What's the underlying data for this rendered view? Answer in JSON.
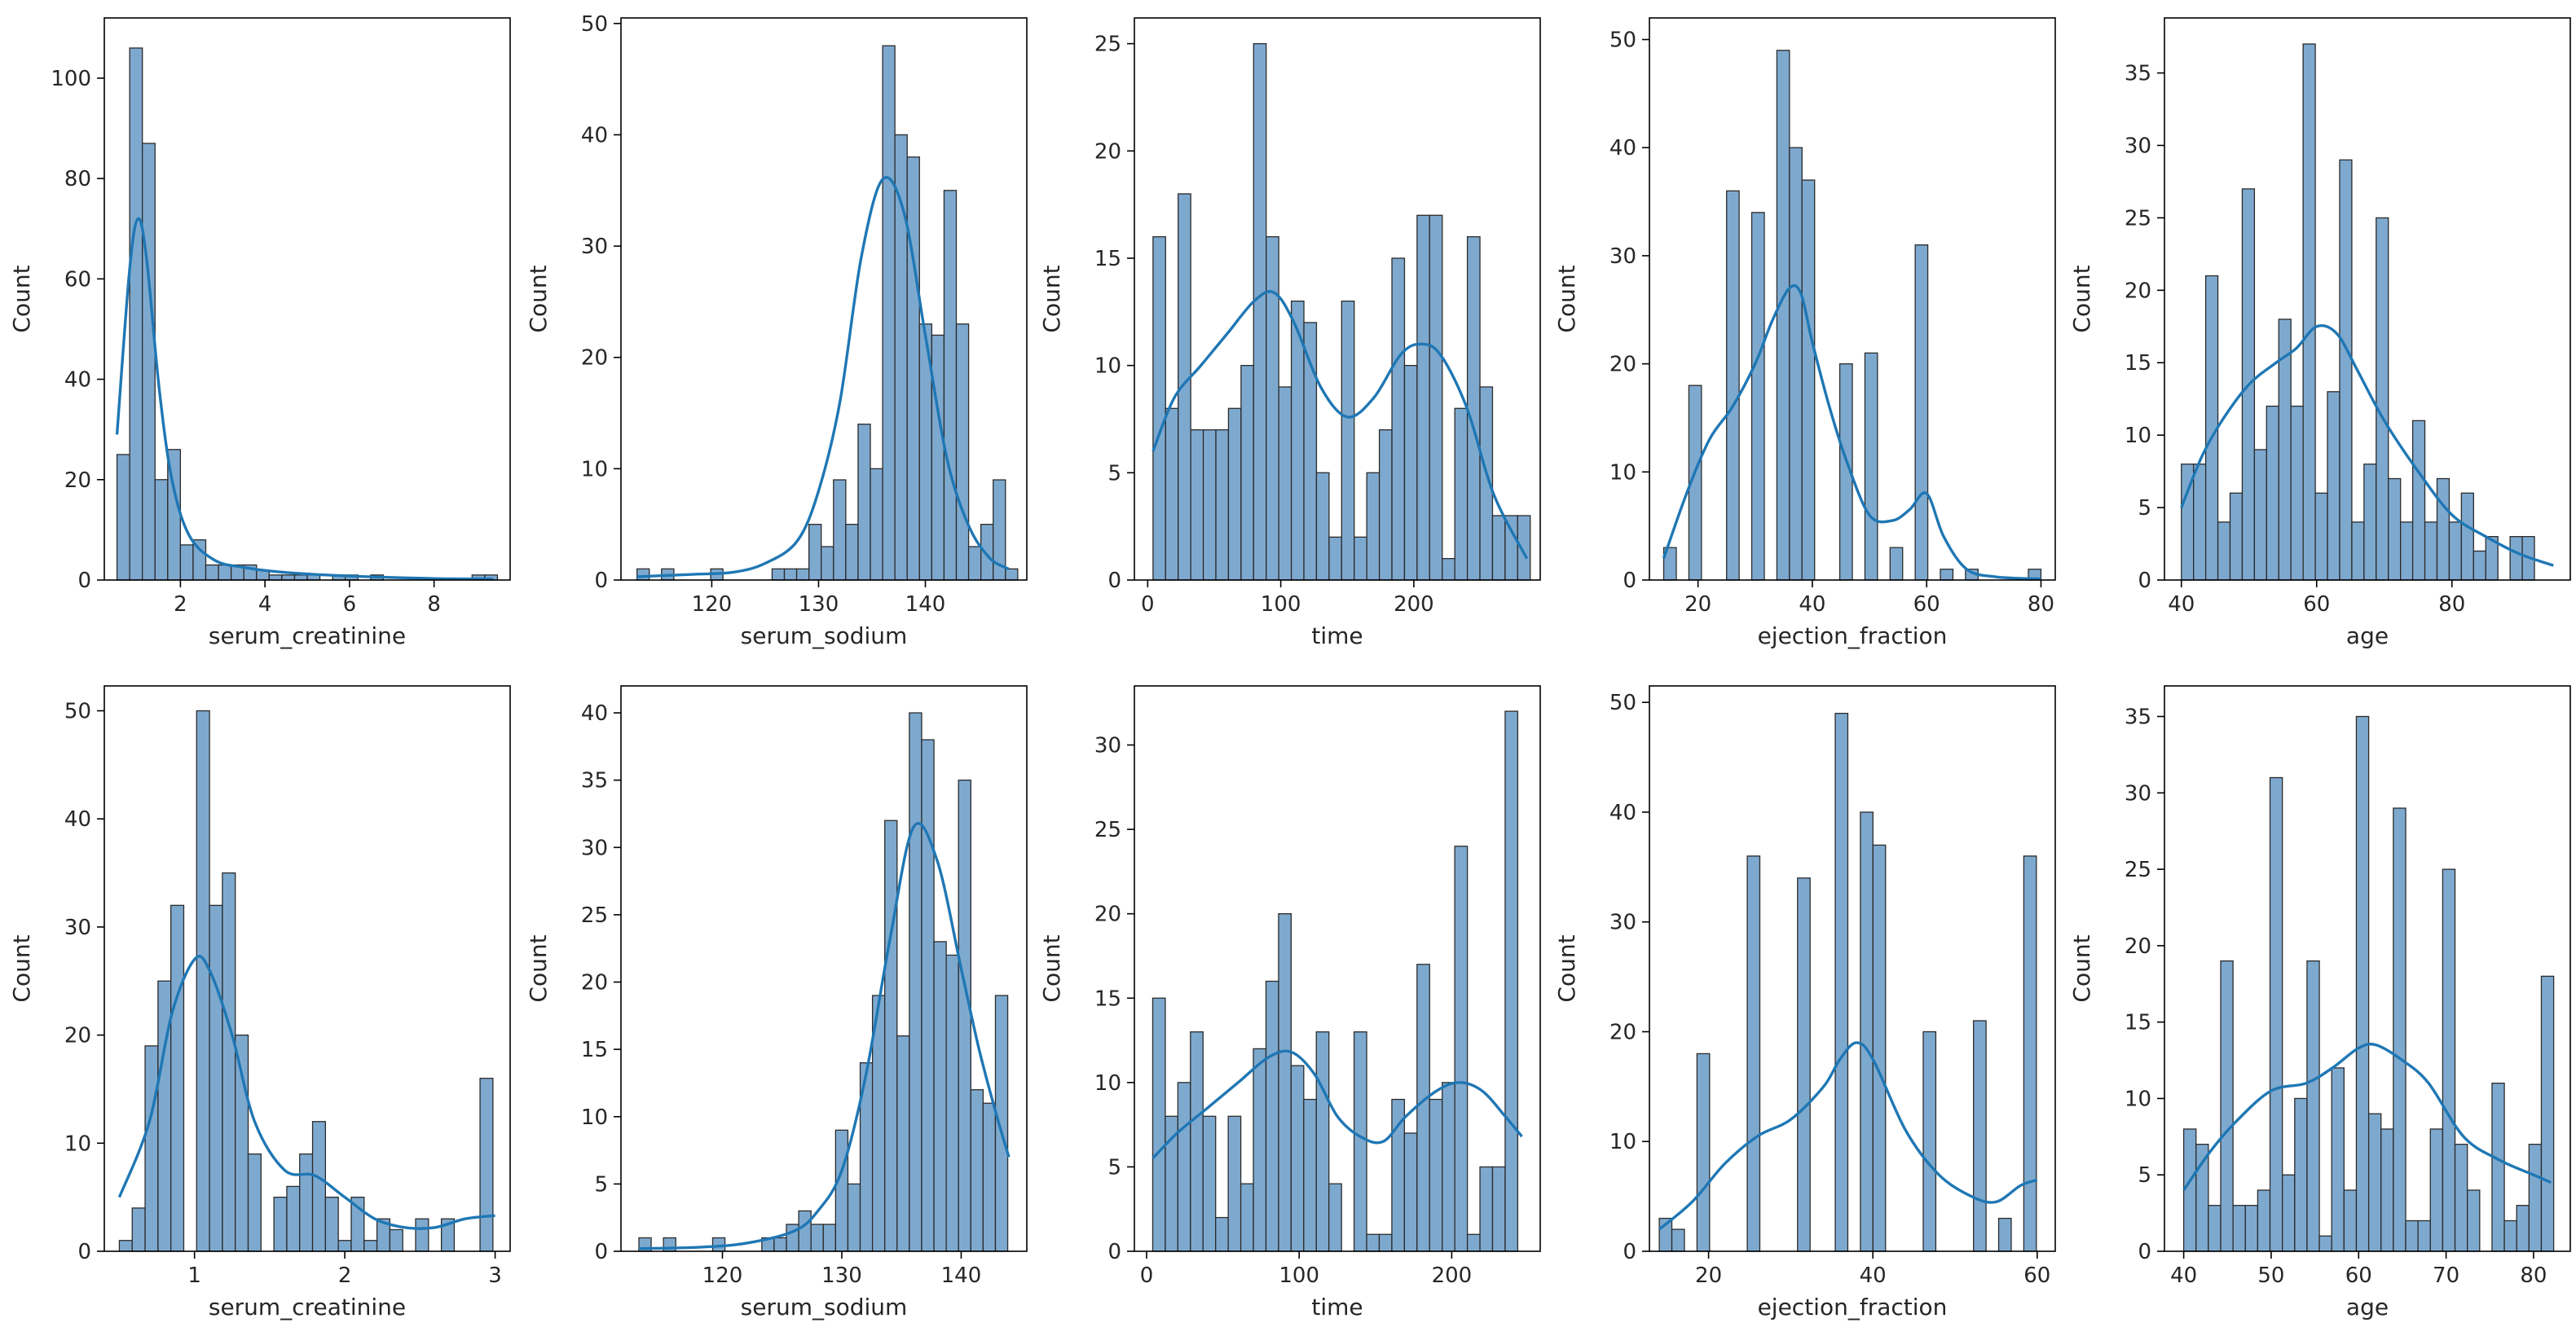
{
  "colors": {
    "bar_fill": "#7ea9cf",
    "bar_stroke": "#2b2b2b",
    "kde_line": "#1f77b4",
    "axes": "#000000",
    "text": "#262626"
  },
  "chart_data": [
    {
      "type": "bar",
      "subtype": "histogram+kde",
      "title": "",
      "xlabel": "serum_creatinine",
      "ylabel": "Count",
      "xlim": [
        0.2,
        9.8
      ],
      "ylim": [
        0,
        112
      ],
      "xticks": [
        2,
        4,
        6,
        8
      ],
      "yticks": [
        0,
        20,
        40,
        60,
        80,
        100
      ],
      "bin_start": 0.5,
      "bin_width": 0.3,
      "values": [
        25,
        106,
        87,
        20,
        26,
        7,
        8,
        3,
        3,
        3,
        3,
        2,
        1,
        1,
        1,
        1,
        0,
        1,
        1,
        0,
        1,
        0,
        0,
        0,
        0,
        0,
        0,
        0,
        1,
        1
      ],
      "kde": {
        "x": [
          0.5,
          0.8,
          1.0,
          1.2,
          1.5,
          1.8,
          2.2,
          2.8,
          3.5,
          4.5,
          6.0,
          8.0,
          9.4
        ],
        "y": [
          29,
          62,
          72,
          64,
          38,
          20,
          9,
          4,
          2.5,
          1.5,
          0.8,
          0.3,
          0.2
        ]
      }
    },
    {
      "type": "bar",
      "subtype": "histogram+kde",
      "title": "",
      "xlabel": "serum_sodium",
      "ylabel": "Count",
      "xlim": [
        111.5,
        149.5
      ],
      "ylim": [
        0,
        50.5
      ],
      "xticks": [
        120,
        130,
        140
      ],
      "yticks": [
        0,
        10,
        20,
        30,
        40,
        50
      ],
      "bin_start": 113,
      "bin_width": 1.15,
      "values": [
        1,
        0,
        1,
        0,
        0,
        0,
        1,
        0,
        0,
        0,
        0,
        1,
        1,
        1,
        5,
        3,
        9,
        5,
        14,
        10,
        48,
        40,
        38,
        23,
        22,
        35,
        23,
        3,
        5,
        9,
        1
      ],
      "kde": {
        "x": [
          113,
          118,
          122,
          125,
          128,
          130,
          132,
          134,
          136,
          138,
          140,
          142,
          144,
          146,
          147.8
        ],
        "y": [
          0.3,
          0.5,
          0.7,
          1.5,
          3.5,
          8,
          16,
          29,
          36,
          33,
          22,
          11,
          5,
          2,
          1
        ]
      }
    },
    {
      "type": "bar",
      "subtype": "histogram+kde",
      "title": "",
      "xlabel": "time",
      "ylabel": "Count",
      "xlim": [
        -10,
        295
      ],
      "ylim": [
        0,
        26.2
      ],
      "xticks": [
        0,
        100,
        200
      ],
      "yticks": [
        0,
        5,
        10,
        15,
        20,
        25
      ],
      "bin_start": 4,
      "bin_width": 9.45,
      "values": [
        16,
        8,
        18,
        7,
        7,
        7,
        8,
        10,
        25,
        16,
        9,
        13,
        12,
        5,
        2,
        13,
        2,
        5,
        7,
        15,
        10,
        17,
        17,
        1,
        8,
        16,
        9,
        3,
        3,
        3
      ],
      "kde": {
        "x": [
          4,
          20,
          40,
          60,
          80,
          95,
          110,
          130,
          150,
          170,
          190,
          205,
          220,
          240,
          260,
          285
        ],
        "y": [
          6,
          8.5,
          10,
          11.5,
          13,
          13.4,
          12,
          9,
          7.6,
          8.5,
          10.5,
          11,
          10.5,
          8,
          4,
          1
        ]
      }
    },
    {
      "type": "bar",
      "subtype": "histogram+kde",
      "title": "",
      "xlabel": "ejection_fraction",
      "ylabel": "Count",
      "xlim": [
        11.5,
        82.5
      ],
      "ylim": [
        0,
        52
      ],
      "xticks": [
        20,
        40,
        60,
        80
      ],
      "yticks": [
        0,
        10,
        20,
        30,
        40,
        50
      ],
      "bin_start": 14,
      "bin_width": 2.2,
      "values": [
        3,
        0,
        18,
        0,
        0,
        36,
        0,
        34,
        0,
        49,
        40,
        37,
        0,
        0,
        20,
        0,
        21,
        0,
        3,
        0,
        31,
        0,
        1,
        0,
        1,
        0,
        0,
        0,
        0,
        1
      ],
      "kde": {
        "x": [
          14,
          18,
          22,
          26,
          30,
          33,
          36,
          38,
          40,
          43,
          46,
          50,
          54,
          57,
          60,
          63,
          67,
          72,
          80
        ],
        "y": [
          2,
          8,
          13,
          16,
          20,
          24,
          27,
          26.5,
          22,
          16,
          11,
          6,
          5.5,
          6.5,
          8,
          4,
          1,
          0.3,
          0.1
        ]
      }
    },
    {
      "type": "bar",
      "subtype": "histogram+kde",
      "title": "",
      "xlabel": "age",
      "ylabel": "Count",
      "xlim": [
        37.5,
        97.5
      ],
      "ylim": [
        0,
        38.8
      ],
      "xticks": [
        40,
        60,
        80
      ],
      "yticks": [
        0,
        5,
        10,
        15,
        20,
        25,
        30,
        35
      ],
      "bin_start": 40,
      "bin_width": 1.8,
      "values": [
        8,
        8,
        21,
        4,
        6,
        27,
        9,
        12,
        18,
        12,
        37,
        6,
        13,
        29,
        4,
        8,
        25,
        7,
        4,
        11,
        4,
        7,
        4,
        6,
        2,
        3,
        0,
        3,
        3,
        0
      ],
      "kde": {
        "x": [
          40,
          43,
          46,
          50,
          54,
          57,
          60,
          63,
          66,
          70,
          75,
          80,
          85,
          90,
          95
        ],
        "y": [
          5,
          8.5,
          11,
          13.5,
          15,
          16,
          17.5,
          17,
          14.5,
          11,
          7.5,
          4.5,
          3,
          1.8,
          1
        ]
      }
    },
    {
      "type": "bar",
      "subtype": "histogram+kde",
      "title": "",
      "xlabel": "serum_creatinine",
      "ylabel": "Count",
      "xlim": [
        0.4,
        3.1
      ],
      "ylim": [
        0,
        52.3
      ],
      "xticks": [
        1,
        2,
        3
      ],
      "yticks": [
        0,
        10,
        20,
        30,
        40,
        50
      ],
      "bin_start": 0.5,
      "bin_width": 0.0857,
      "values": [
        1,
        4,
        19,
        25,
        32,
        0,
        50,
        32,
        35,
        20,
        9,
        0,
        5,
        6,
        9,
        12,
        5,
        1,
        5,
        1,
        3,
        2,
        0,
        3,
        0,
        3,
        0,
        0,
        16
      ],
      "kde": {
        "x": [
          0.5,
          0.7,
          0.85,
          1.0,
          1.1,
          1.25,
          1.4,
          1.6,
          1.8,
          2.0,
          2.2,
          2.4,
          2.6,
          2.8,
          3.0
        ],
        "y": [
          5,
          12,
          22,
          27,
          26,
          20,
          12,
          7.5,
          7,
          5,
          3,
          2.2,
          2.2,
          3,
          3.3
        ]
      }
    },
    {
      "type": "bar",
      "subtype": "histogram+kde",
      "title": "",
      "xlabel": "serum_sodium",
      "ylabel": "Count",
      "xlim": [
        111.5,
        145.5
      ],
      "ylim": [
        0,
        42
      ],
      "xticks": [
        120,
        130,
        140
      ],
      "yticks": [
        0,
        5,
        10,
        15,
        20,
        25,
        30,
        35,
        40
      ],
      "bin_start": 113,
      "bin_width": 1.03,
      "values": [
        1,
        0,
        1,
        0,
        0,
        0,
        1,
        0,
        0,
        0,
        1,
        1,
        2,
        3,
        2,
        2,
        9,
        5,
        14,
        19,
        32,
        16,
        40,
        38,
        23,
        22,
        35,
        12,
        11,
        19
      ],
      "kde": {
        "x": [
          113,
          118,
          122,
          126,
          128,
          130,
          132,
          134,
          136,
          138,
          140,
          141.5,
          143,
          144
        ],
        "y": [
          0.2,
          0.3,
          0.6,
          1.5,
          3,
          6,
          13,
          23,
          31.5,
          29,
          21,
          15,
          10,
          7
        ]
      }
    },
    {
      "type": "bar",
      "subtype": "histogram+kde",
      "title": "",
      "xlabel": "time",
      "ylabel": "Count",
      "xlim": [
        -8,
        258
      ],
      "ylim": [
        0,
        33.5
      ],
      "xticks": [
        0,
        100,
        200
      ],
      "yticks": [
        0,
        5,
        10,
        15,
        20,
        25,
        30
      ],
      "bin_start": 4,
      "bin_width": 8.25,
      "values": [
        15,
        8,
        10,
        13,
        8,
        2,
        8,
        4,
        12,
        16,
        20,
        11,
        9,
        13,
        4,
        0,
        13,
        1,
        1,
        9,
        7,
        17,
        9,
        10,
        24,
        1,
        5,
        5,
        32
      ],
      "kde": {
        "x": [
          4,
          20,
          40,
          60,
          80,
          95,
          110,
          125,
          140,
          155,
          170,
          190,
          205,
          220,
          235,
          246
        ],
        "y": [
          5.5,
          7,
          8.5,
          10,
          11.5,
          11.8,
          10.5,
          8,
          6.8,
          6.5,
          8,
          9.5,
          10,
          9.5,
          8,
          6.8
        ]
      }
    },
    {
      "type": "bar",
      "subtype": "histogram+kde",
      "title": "",
      "xlabel": "ejection_fraction",
      "ylabel": "Count",
      "xlim": [
        12.8,
        62.2
      ],
      "ylim": [
        0,
        51.5
      ],
      "xticks": [
        20,
        40,
        60
      ],
      "yticks": [
        0,
        10,
        20,
        30,
        40,
        50
      ],
      "bin_start": 14,
      "bin_width": 1.53,
      "values": [
        3,
        2,
        0,
        18,
        0,
        0,
        0,
        36,
        0,
        0,
        0,
        34,
        0,
        0,
        49,
        0,
        40,
        37,
        0,
        0,
        0,
        20,
        0,
        0,
        0,
        21,
        0,
        3,
        0,
        36
      ],
      "kde": {
        "x": [
          14,
          18,
          22,
          26,
          30,
          34,
          36,
          38,
          40,
          44,
          48,
          52,
          55,
          58,
          60
        ],
        "y": [
          2,
          4.5,
          8,
          10.5,
          12,
          15,
          17.5,
          19,
          17.5,
          11,
          7,
          5,
          4.5,
          6,
          6.5
        ]
      }
    },
    {
      "type": "bar",
      "subtype": "histogram+kde",
      "title": "",
      "xlabel": "age",
      "ylabel": "Count",
      "xlim": [
        37.8,
        84.2
      ],
      "ylim": [
        0,
        37
      ],
      "xticks": [
        40,
        50,
        60,
        70,
        80
      ],
      "yticks": [
        0,
        5,
        10,
        15,
        20,
        25,
        30,
        35
      ],
      "bin_start": 40,
      "bin_width": 1.41,
      "values": [
        8,
        7,
        3,
        19,
        3,
        3,
        4,
        31,
        5,
        10,
        19,
        1,
        12,
        4,
        35,
        9,
        8,
        29,
        2,
        2,
        8,
        25,
        7,
        4,
        0,
        11,
        2,
        3,
        7,
        18
      ],
      "kde": {
        "x": [
          40,
          43,
          46,
          50,
          54,
          57,
          60,
          62,
          65,
          68,
          72,
          76,
          80,
          82
        ],
        "y": [
          4,
          6.5,
          8.5,
          10.5,
          11,
          12,
          13.3,
          13.5,
          12.5,
          11,
          7.5,
          6,
          5,
          4.5
        ]
      }
    }
  ]
}
